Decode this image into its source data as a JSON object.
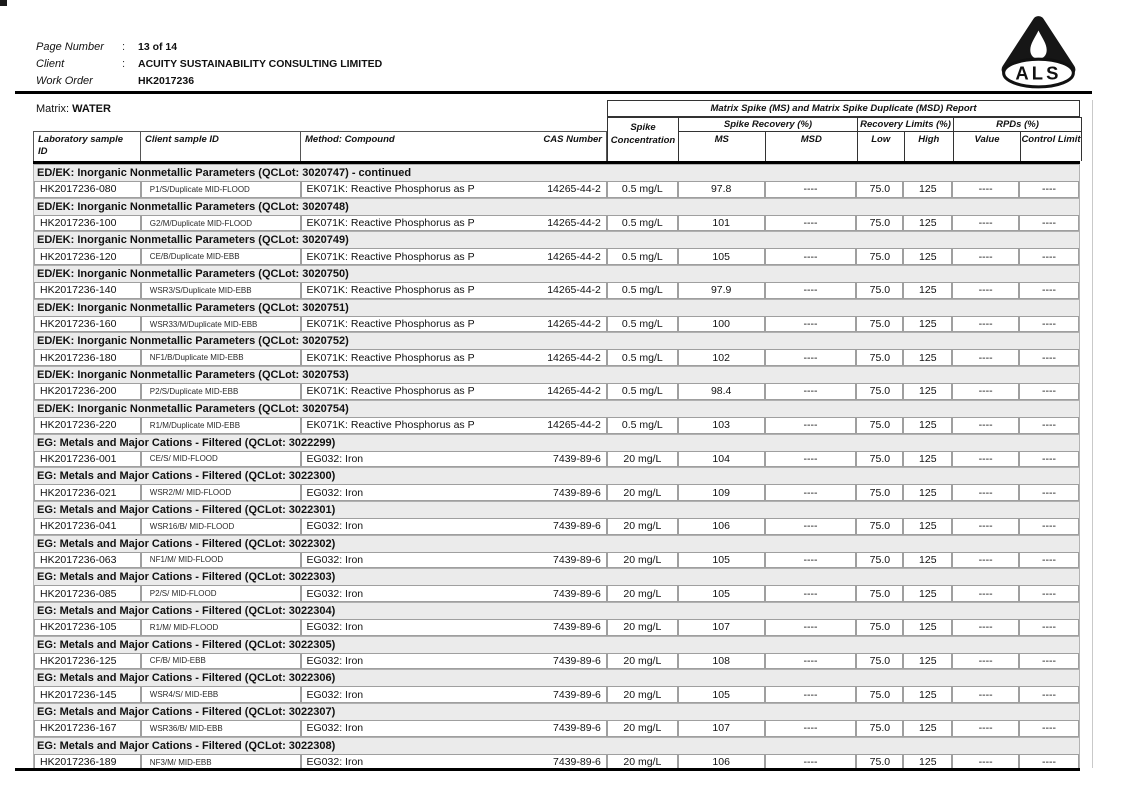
{
  "page_header": {
    "page_number": {
      "label": "Page Number",
      "sep": ":",
      "value": "13 of 14"
    },
    "client": {
      "label": "Client",
      "sep": ":",
      "value": "ACUITY SUSTAINABILITY CONSULTING LIMITED"
    },
    "work_order": {
      "label": "Work Order",
      "sep": "",
      "value": "HK2017236"
    },
    "logo_text": "ALS"
  },
  "matrix": {
    "label": "Matrix:",
    "value": "WATER"
  },
  "colors": {
    "rule_black": "#000000",
    "body_gray": "#e7e7e7",
    "cell_border": "#9f9f9f"
  },
  "table": {
    "report_title": "Matrix Spike (MS) and Matrix Spike Duplicate (MSD) Report",
    "header": {
      "lab_line1": "Laboratory sample",
      "lab_line2": "ID",
      "client": "Client sample ID",
      "method": "Method: Compound",
      "cas": "CAS Number",
      "spike_conc_line1": "Spike",
      "spike_conc_line2": "Concentration",
      "group_recovery": "Spike Recovery (%)",
      "ms": "MS",
      "msd": "MSD",
      "group_limits": "Recovery Limits (%)",
      "low": "Low",
      "high": "High",
      "group_rpds": "RPDs (%)",
      "value": "Value",
      "control": "Control Limit"
    },
    "sections": [
      {
        "title": "ED/EK: Inorganic Nonmetallic Parameters  (QCLot: 3020747)  - continued",
        "rows": [
          {
            "lab": "HK2017236-080",
            "client": "P1/S/Duplicate MID-FLOOD",
            "method": "EK071K: Reactive Phosphorus as P",
            "cas": "14265-44-2",
            "conc": "0.5 mg/L",
            "ms": "97.8",
            "msd": "----",
            "low": "75.0",
            "high": "125",
            "rpd_value": "----",
            "rpd_control": "----"
          }
        ]
      },
      {
        "title": "ED/EK: Inorganic Nonmetallic Parameters  (QCLot: 3020748)",
        "rows": [
          {
            "lab": "HK2017236-100",
            "client": "G2/M/Duplicate MID-FLOOD",
            "method": "EK071K: Reactive Phosphorus as P",
            "cas": "14265-44-2",
            "conc": "0.5 mg/L",
            "ms": "101",
            "msd": "----",
            "low": "75.0",
            "high": "125",
            "rpd_value": "----",
            "rpd_control": "----"
          }
        ]
      },
      {
        "title": "ED/EK: Inorganic Nonmetallic Parameters  (QCLot: 3020749)",
        "rows": [
          {
            "lab": "HK2017236-120",
            "client": "CE/B/Duplicate MID-EBB",
            "method": "EK071K: Reactive Phosphorus as P",
            "cas": "14265-44-2",
            "conc": "0.5 mg/L",
            "ms": "105",
            "msd": "----",
            "low": "75.0",
            "high": "125",
            "rpd_value": "----",
            "rpd_control": "----"
          }
        ]
      },
      {
        "title": "ED/EK: Inorganic Nonmetallic Parameters  (QCLot: 3020750)",
        "rows": [
          {
            "lab": "HK2017236-140",
            "client": "WSR3/S/Duplicate MID-EBB",
            "method": "EK071K: Reactive Phosphorus as P",
            "cas": "14265-44-2",
            "conc": "0.5 mg/L",
            "ms": "97.9",
            "msd": "----",
            "low": "75.0",
            "high": "125",
            "rpd_value": "----",
            "rpd_control": "----"
          }
        ]
      },
      {
        "title": "ED/EK: Inorganic Nonmetallic Parameters  (QCLot: 3020751)",
        "rows": [
          {
            "lab": "HK2017236-160",
            "client": "WSR33/M/Duplicate MID-EBB",
            "method": "EK071K: Reactive Phosphorus as P",
            "cas": "14265-44-2",
            "conc": "0.5 mg/L",
            "ms": "100",
            "msd": "----",
            "low": "75.0",
            "high": "125",
            "rpd_value": "----",
            "rpd_control": "----"
          }
        ]
      },
      {
        "title": "ED/EK: Inorganic Nonmetallic Parameters  (QCLot: 3020752)",
        "rows": [
          {
            "lab": "HK2017236-180",
            "client": "NF1/B/Duplicate MID-EBB",
            "method": "EK071K: Reactive Phosphorus as P",
            "cas": "14265-44-2",
            "conc": "0.5 mg/L",
            "ms": "102",
            "msd": "----",
            "low": "75.0",
            "high": "125",
            "rpd_value": "----",
            "rpd_control": "----"
          }
        ]
      },
      {
        "title": "ED/EK: Inorganic Nonmetallic Parameters  (QCLot: 3020753)",
        "rows": [
          {
            "lab": "HK2017236-200",
            "client": "P2/S/Duplicate MID-EBB",
            "method": "EK071K: Reactive Phosphorus as P",
            "cas": "14265-44-2",
            "conc": "0.5 mg/L",
            "ms": "98.4",
            "msd": "----",
            "low": "75.0",
            "high": "125",
            "rpd_value": "----",
            "rpd_control": "----"
          }
        ]
      },
      {
        "title": "ED/EK: Inorganic Nonmetallic Parameters  (QCLot: 3020754)",
        "rows": [
          {
            "lab": "HK2017236-220",
            "client": "R1/M/Duplicate MID-EBB",
            "method": "EK071K: Reactive Phosphorus as P",
            "cas": "14265-44-2",
            "conc": "0.5 mg/L",
            "ms": "103",
            "msd": "----",
            "low": "75.0",
            "high": "125",
            "rpd_value": "----",
            "rpd_control": "----"
          }
        ]
      },
      {
        "title": "EG: Metals and Major Cations - Filtered  (QCLot: 3022299)",
        "rows": [
          {
            "lab": "HK2017236-001",
            "client": "CE/S/ MID-FLOOD",
            "method": "EG032: Iron",
            "cas": "7439-89-6",
            "conc": "20 mg/L",
            "ms": "104",
            "msd": "----",
            "low": "75.0",
            "high": "125",
            "rpd_value": "----",
            "rpd_control": "----"
          }
        ]
      },
      {
        "title": "EG: Metals and Major Cations - Filtered  (QCLot: 3022300)",
        "rows": [
          {
            "lab": "HK2017236-021",
            "client": "WSR2/M/ MID-FLOOD",
            "method": "EG032: Iron",
            "cas": "7439-89-6",
            "conc": "20 mg/L",
            "ms": "109",
            "msd": "----",
            "low": "75.0",
            "high": "125",
            "rpd_value": "----",
            "rpd_control": "----"
          }
        ]
      },
      {
        "title": "EG: Metals and Major Cations - Filtered  (QCLot: 3022301)",
        "rows": [
          {
            "lab": "HK2017236-041",
            "client": "WSR16/B/ MID-FLOOD",
            "method": "EG032: Iron",
            "cas": "7439-89-6",
            "conc": "20 mg/L",
            "ms": "106",
            "msd": "----",
            "low": "75.0",
            "high": "125",
            "rpd_value": "----",
            "rpd_control": "----"
          }
        ]
      },
      {
        "title": "EG: Metals and Major Cations - Filtered  (QCLot: 3022302)",
        "rows": [
          {
            "lab": "HK2017236-063",
            "client": "NF1/M/ MID-FLOOD",
            "method": "EG032: Iron",
            "cas": "7439-89-6",
            "conc": "20 mg/L",
            "ms": "105",
            "msd": "----",
            "low": "75.0",
            "high": "125",
            "rpd_value": "----",
            "rpd_control": "----"
          }
        ]
      },
      {
        "title": "EG: Metals and Major Cations - Filtered  (QCLot: 3022303)",
        "rows": [
          {
            "lab": "HK2017236-085",
            "client": "P2/S/ MID-FLOOD",
            "method": "EG032: Iron",
            "cas": "7439-89-6",
            "conc": "20 mg/L",
            "ms": "105",
            "msd": "----",
            "low": "75.0",
            "high": "125",
            "rpd_value": "----",
            "rpd_control": "----"
          }
        ]
      },
      {
        "title": "EG: Metals and Major Cations - Filtered  (QCLot: 3022304)",
        "rows": [
          {
            "lab": "HK2017236-105",
            "client": "R1/M/ MID-FLOOD",
            "method": "EG032: Iron",
            "cas": "7439-89-6",
            "conc": "20 mg/L",
            "ms": "107",
            "msd": "----",
            "low": "75.0",
            "high": "125",
            "rpd_value": "----",
            "rpd_control": "----"
          }
        ]
      },
      {
        "title": "EG: Metals and Major Cations - Filtered  (QCLot: 3022305)",
        "rows": [
          {
            "lab": "HK2017236-125",
            "client": "CF/B/ MID-EBB",
            "method": "EG032: Iron",
            "cas": "7439-89-6",
            "conc": "20 mg/L",
            "ms": "108",
            "msd": "----",
            "low": "75.0",
            "high": "125",
            "rpd_value": "----",
            "rpd_control": "----"
          }
        ]
      },
      {
        "title": "EG: Metals and Major Cations - Filtered  (QCLot: 3022306)",
        "rows": [
          {
            "lab": "HK2017236-145",
            "client": "WSR4/S/ MID-EBB",
            "method": "EG032: Iron",
            "cas": "7439-89-6",
            "conc": "20 mg/L",
            "ms": "105",
            "msd": "----",
            "low": "75.0",
            "high": "125",
            "rpd_value": "----",
            "rpd_control": "----"
          }
        ]
      },
      {
        "title": "EG: Metals and Major Cations - Filtered  (QCLot: 3022307)",
        "rows": [
          {
            "lab": "HK2017236-167",
            "client": "WSR36/B/ MID-EBB",
            "method": "EG032: Iron",
            "cas": "7439-89-6",
            "conc": "20 mg/L",
            "ms": "107",
            "msd": "----",
            "low": "75.0",
            "high": "125",
            "rpd_value": "----",
            "rpd_control": "----"
          }
        ]
      },
      {
        "title": "EG: Metals and Major Cations - Filtered  (QCLot: 3022308)",
        "rows": [
          {
            "lab": "HK2017236-189",
            "client": "NF3/M/ MID-EBB",
            "method": "EG032: Iron",
            "cas": "7439-89-6",
            "conc": "20 mg/L",
            "ms": "106",
            "msd": "----",
            "low": "75.0",
            "high": "125",
            "rpd_value": "----",
            "rpd_control": "----"
          }
        ]
      }
    ]
  }
}
